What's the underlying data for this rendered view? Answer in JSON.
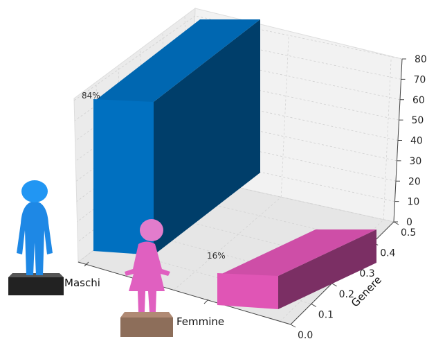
{
  "chart_data": {
    "type": "bar",
    "projection": "3d",
    "categories": [
      "Maschi",
      "Femmine"
    ],
    "values": [
      84,
      16
    ],
    "data_labels": [
      "84%",
      "16%"
    ],
    "colors": [
      "#0070c0",
      "#e055b5"
    ],
    "zlim": [
      0,
      85
    ],
    "z_ticks": [
      "0",
      "10",
      "20",
      "30",
      "40",
      "50",
      "60",
      "70",
      "80"
    ],
    "ylabel": "Genere",
    "y_ticks": [
      "0.0",
      "0.1",
      "0.2",
      "0.3",
      "0.4",
      "0.5"
    ],
    "grid": true,
    "legend": "none",
    "icons": [
      "male-figure-icon",
      "female-figure-icon"
    ]
  }
}
